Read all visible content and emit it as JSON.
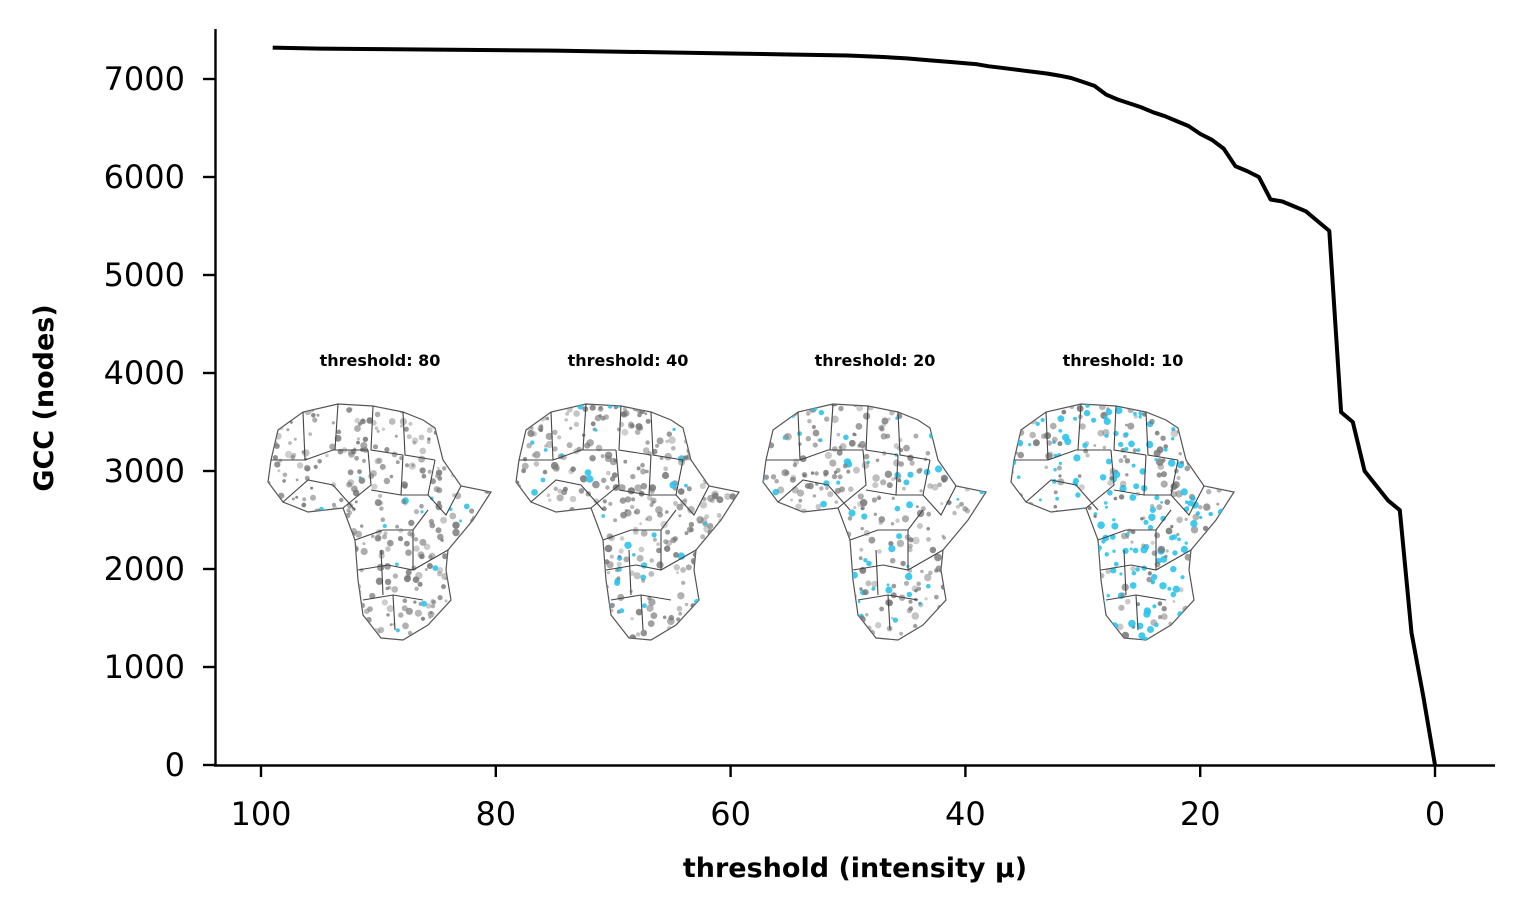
{
  "chart_data": {
    "type": "line",
    "xlabel": "threshold (intensity μ)",
    "ylabel": "GCC (nodes)",
    "xlim": [
      104,
      -5
    ],
    "ylim": [
      0,
      7500
    ],
    "x_inverted": true,
    "grid": false,
    "line_color": "#000000",
    "x_ticks": [
      100,
      80,
      60,
      40,
      20,
      0
    ],
    "y_ticks": [
      0,
      1000,
      2000,
      3000,
      4000,
      5000,
      6000,
      7000
    ],
    "series": [
      {
        "x": [
          99,
          95,
          90,
          85,
          80,
          75,
          70,
          65,
          60,
          55,
          50,
          47,
          45,
          43,
          41,
          39,
          38,
          37,
          36,
          35,
          34,
          33,
          32,
          31,
          30,
          29,
          28,
          27,
          26,
          25,
          24,
          23,
          22,
          21,
          20,
          19,
          18,
          17,
          16,
          15,
          14,
          13,
          12,
          11,
          10,
          9,
          8,
          7,
          6,
          5,
          4,
          3,
          2,
          1,
          0
        ],
        "y": [
          7320,
          7310,
          7305,
          7300,
          7295,
          7290,
          7280,
          7270,
          7260,
          7250,
          7240,
          7225,
          7210,
          7190,
          7170,
          7150,
          7130,
          7115,
          7100,
          7085,
          7070,
          7055,
          7035,
          7010,
          6970,
          6930,
          6840,
          6790,
          6750,
          6710,
          6660,
          6620,
          6570,
          6520,
          6440,
          6380,
          6290,
          6110,
          6060,
          6000,
          5770,
          5750,
          5700,
          5650,
          5550,
          5450,
          3600,
          3500,
          3000,
          2850,
          2700,
          2600,
          1350,
          700,
          0
        ]
      }
    ],
    "insets": [
      {
        "title": "threshold: 80",
        "highlight_share": 0.05
      },
      {
        "title": "threshold: 40",
        "highlight_share": 0.1
      },
      {
        "title": "threshold: 20",
        "highlight_share": 0.22
      },
      {
        "title": "threshold: 10",
        "highlight_share": 0.45
      }
    ],
    "colors": {
      "axis": "#000000",
      "node": "#777777",
      "highlight": "#2ec4ec",
      "border": "#444444"
    }
  }
}
